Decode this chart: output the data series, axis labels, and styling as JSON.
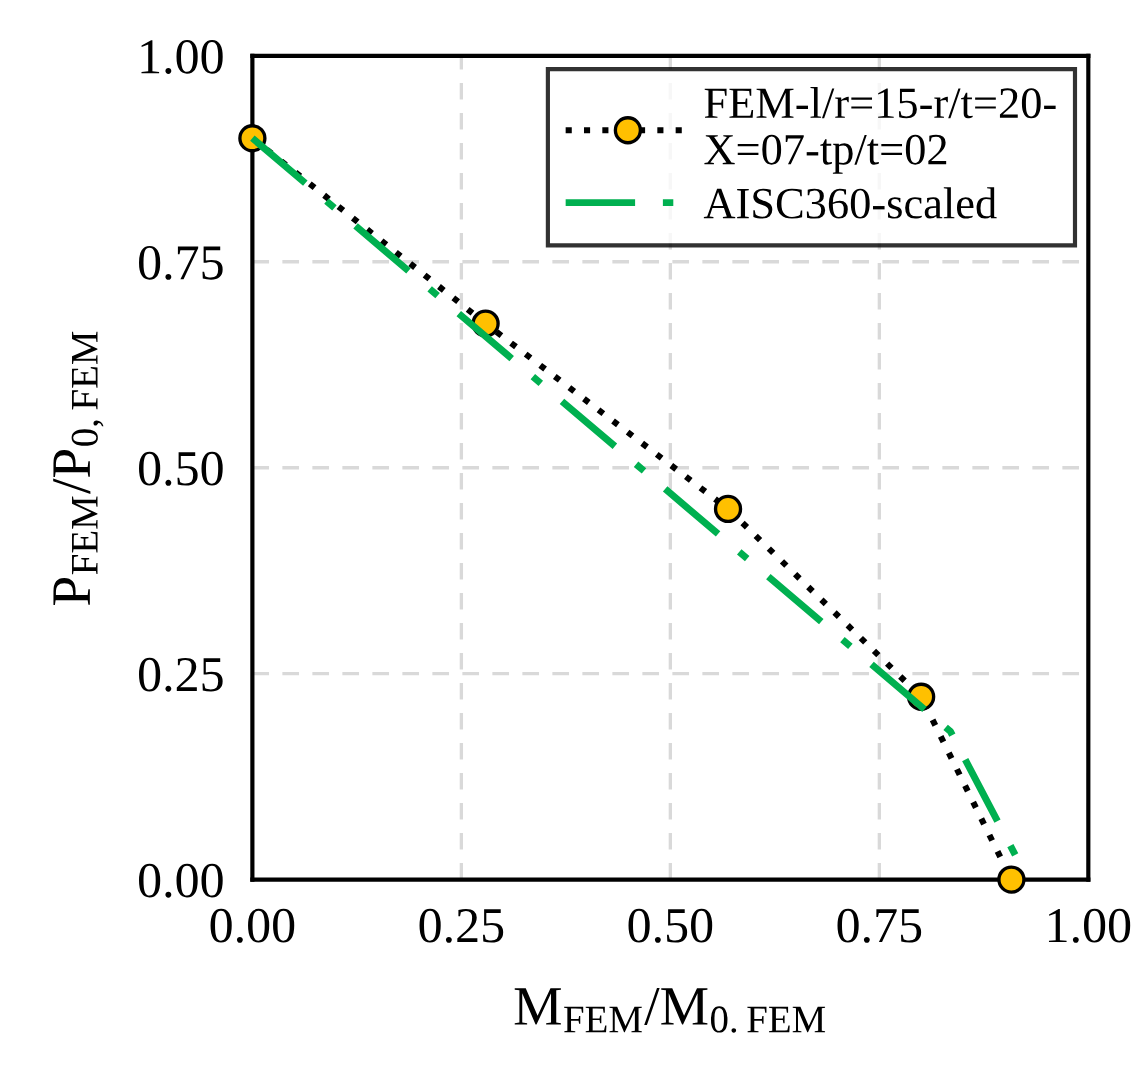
{
  "chart_data": {
    "type": "line",
    "xlabel": "M$_{FEM}$/M$_{0.FEM}$",
    "ylabel": "P$_{FEM}$/P$_{0,FEM}$",
    "series": [
      {
        "name": "FEM-l/r=15-r/t=20-X=07-tp/t=02",
        "color": "#ffc000",
        "marker": "circle",
        "line_style": "dotted",
        "x": [
          0.0,
          0.279,
          0.569,
          0.8,
          0.908
        ],
        "values": [
          0.9,
          0.675,
          0.45,
          0.222,
          0.0
        ]
      },
      {
        "name": "AISC360-scaled",
        "color": "#00b050",
        "marker": "none",
        "line_style": "dashdot",
        "x": [
          0.0,
          0.835,
          0.928
        ],
        "values": [
          0.9,
          0.18,
          0.0
        ]
      }
    ],
    "xlim": [
      0,
      1
    ],
    "ylim": [
      0,
      1
    ],
    "xticks": [
      {
        "value": 0,
        "label": "0.00"
      },
      {
        "value": 0.25,
        "label": "0.25"
      },
      {
        "value": 0.5,
        "label": "0.50"
      },
      {
        "value": 0.75,
        "label": "0.75"
      },
      {
        "value": 1,
        "label": "1.00"
      }
    ],
    "yticks": [
      {
        "value": 0,
        "label": "0.00"
      },
      {
        "value": 0.25,
        "label": "0.25"
      },
      {
        "value": 0.5,
        "label": "0.50"
      },
      {
        "value": 0.75,
        "label": "0.75"
      },
      {
        "value": 1,
        "label": "1.00"
      }
    ],
    "grid": true,
    "legend": "top right"
  }
}
